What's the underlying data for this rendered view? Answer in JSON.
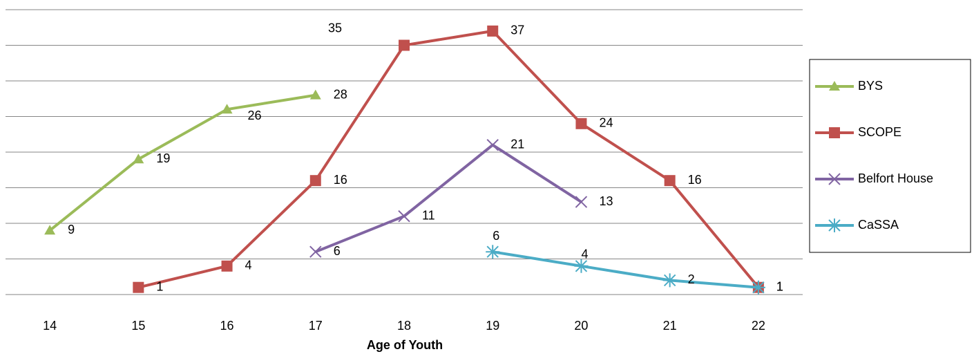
{
  "chart_data": {
    "type": "line",
    "xlabel": "Age of Youth",
    "categories": [
      "14",
      "15",
      "16",
      "17",
      "18",
      "19",
      "20",
      "21",
      "22"
    ],
    "series": [
      {
        "name": "BYS",
        "color": "#9bbb59",
        "marker": "triangle",
        "values": [
          9,
          19,
          26,
          28,
          null,
          null,
          null,
          null,
          null
        ]
      },
      {
        "name": "SCOPE",
        "color": "#c0504d",
        "marker": "square",
        "values": [
          null,
          1,
          4,
          16,
          35,
          37,
          24,
          16,
          1
        ]
      },
      {
        "name": "Belfort House",
        "color": "#8064a2",
        "marker": "x",
        "values": [
          null,
          null,
          null,
          6,
          11,
          21,
          13,
          null,
          null
        ]
      },
      {
        "name": "CaSSA",
        "color": "#4bacc6",
        "marker": "star",
        "values": [
          null,
          null,
          null,
          null,
          null,
          6,
          4,
          2,
          1
        ]
      }
    ],
    "ylim": [
      0,
      40
    ],
    "yticks": [
      0,
      5,
      10,
      15,
      20,
      25,
      30,
      35,
      40
    ],
    "grid": true,
    "legend": "right"
  }
}
